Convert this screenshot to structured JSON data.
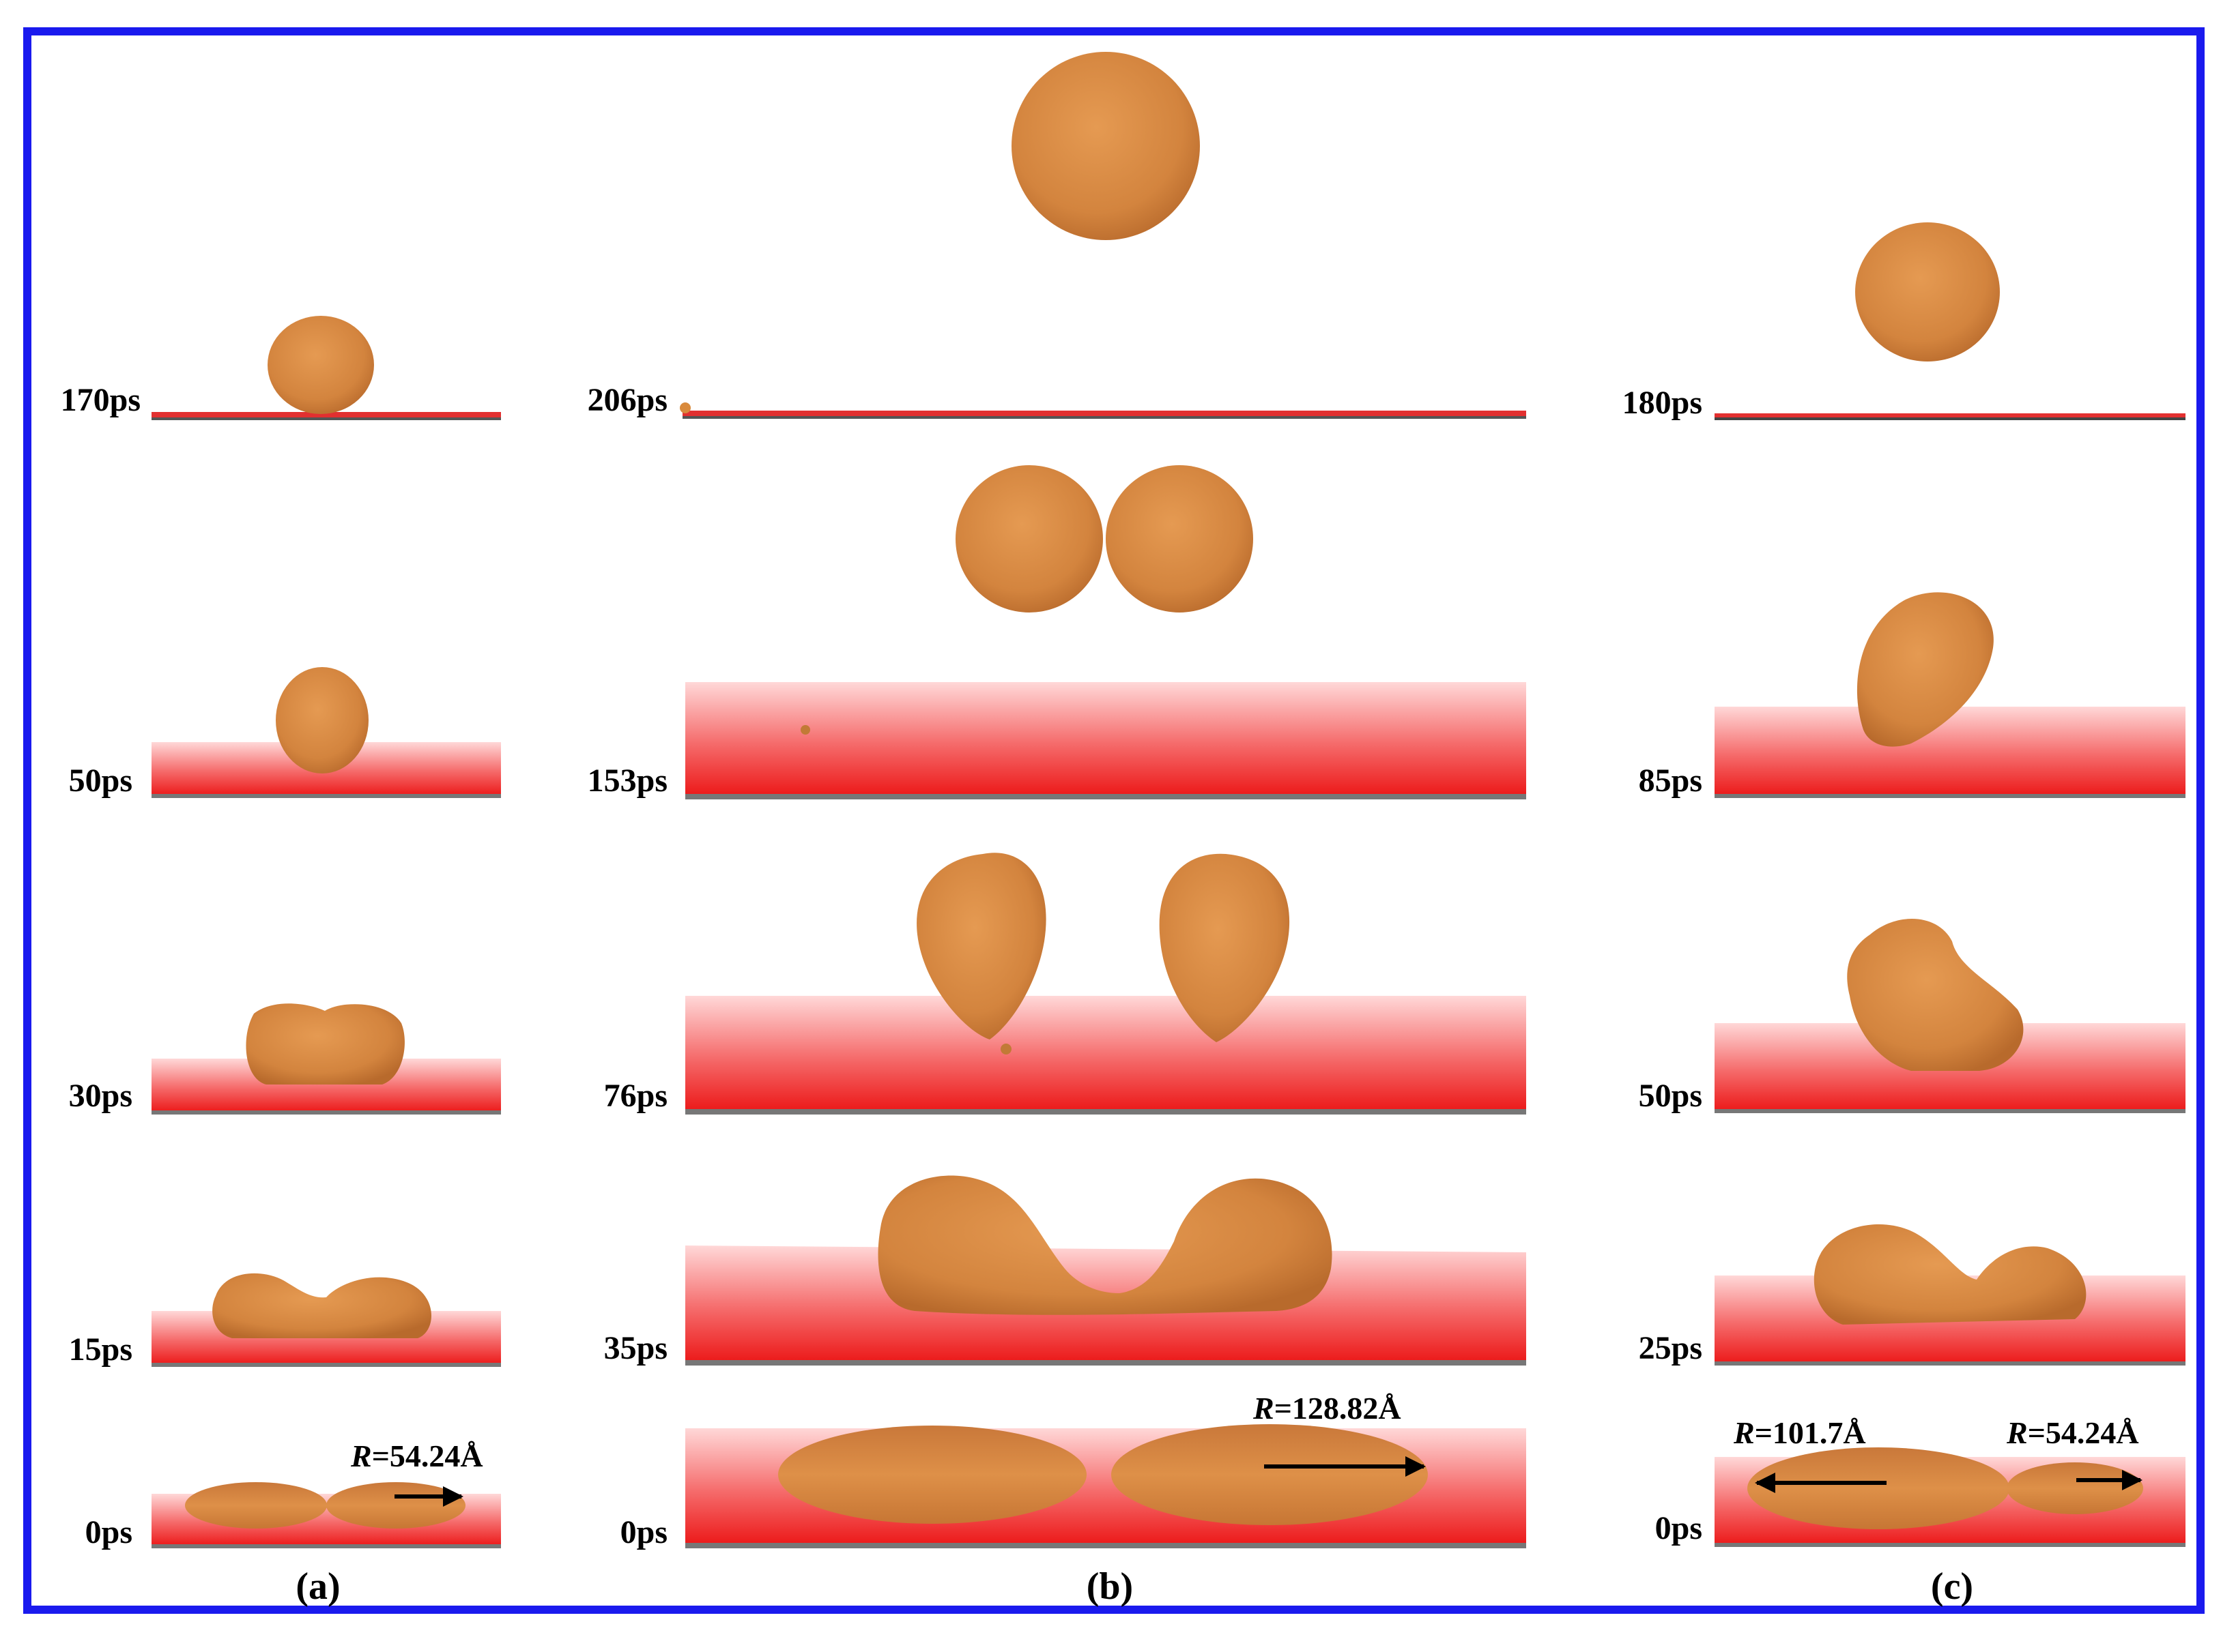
{
  "colors": {
    "frame": "#1a1aee",
    "droplet": "#d98a3c",
    "droplet_edge": "#b8672a",
    "substrate_top": "#ffd6d6",
    "substrate_bottom": "#ee1c1c",
    "substrate_base": "#888888"
  },
  "panels": [
    {
      "id": "a",
      "label": "(a)",
      "snapshots": [
        {
          "time": "170ps"
        },
        {
          "time": "50ps"
        },
        {
          "time": "30ps"
        },
        {
          "time": "15ps"
        },
        {
          "time": "0ps",
          "radius": {
            "symbol": "R",
            "value": "=54.24Å"
          }
        }
      ]
    },
    {
      "id": "b",
      "label": "(b)",
      "snapshots": [
        {
          "time": "206ps"
        },
        {
          "time": "153ps"
        },
        {
          "time": "76ps"
        },
        {
          "time": "35ps"
        },
        {
          "time": "0ps",
          "radius": {
            "symbol": "R",
            "value": "=128.82Å"
          }
        }
      ]
    },
    {
      "id": "c",
      "label": "(c)",
      "snapshots": [
        {
          "time": "180ps"
        },
        {
          "time": "85ps"
        },
        {
          "time": "50ps"
        },
        {
          "time": "25ps"
        },
        {
          "time": "0ps",
          "radius_large": {
            "symbol": "R",
            "value": "=101.7Å"
          },
          "radius_small": {
            "symbol": "R",
            "value": "=54.24Å"
          }
        }
      ]
    }
  ]
}
